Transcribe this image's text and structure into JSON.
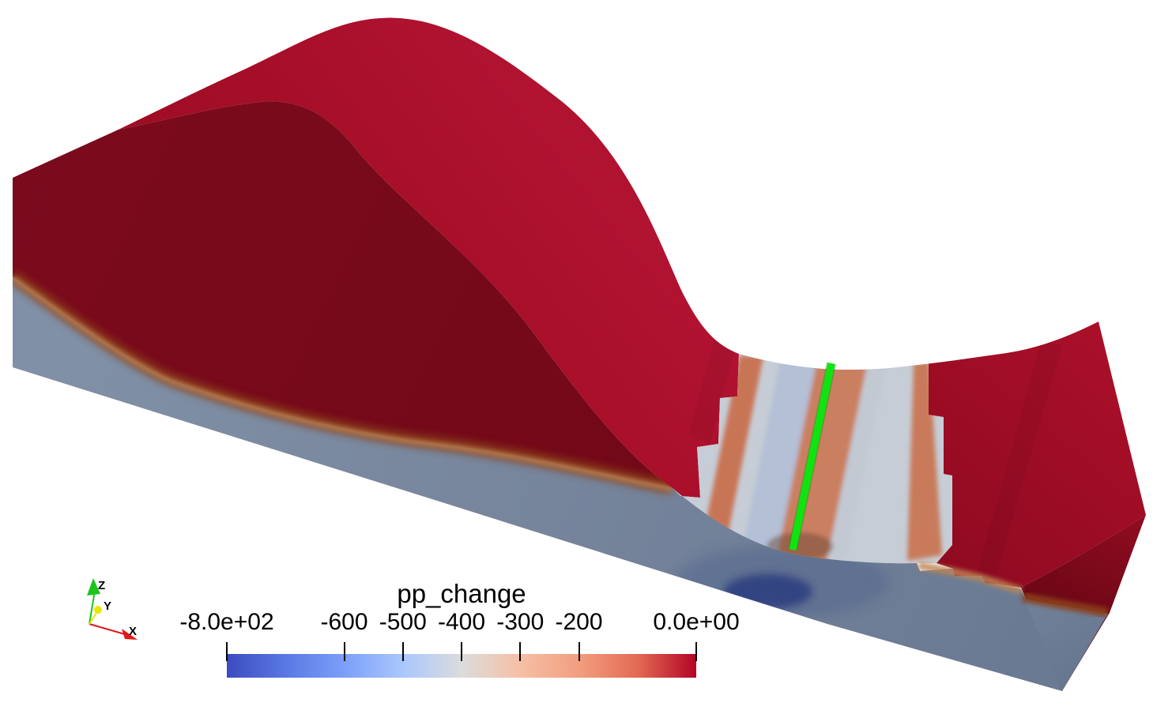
{
  "chart_data": {
    "type": "3d-surface",
    "title": "pp_change",
    "colorbar": {
      "title": "pp_change",
      "min": -800,
      "max": 0,
      "colormap": "cool-to-warm",
      "orientation": "horizontal",
      "ticks": [
        {
          "label": "-8.0e+02",
          "value": -800
        },
        {
          "label": "-600",
          "value": -600
        },
        {
          "label": "-500",
          "value": -500
        },
        {
          "label": "-400",
          "value": -400
        },
        {
          "label": "-300",
          "value": -300
        },
        {
          "label": "-200",
          "value": -200
        },
        {
          "label": "0.0e+00",
          "value": 0
        }
      ],
      "stops": [
        {
          "pos": 0.0,
          "color": "#3b4cc0"
        },
        {
          "pos": 0.125,
          "color": "#5a78e4"
        },
        {
          "pos": 0.25,
          "color": "#7c9ff9"
        },
        {
          "pos": 0.375,
          "color": "#aac7fd"
        },
        {
          "pos": 0.5,
          "color": "#dcdcdc"
        },
        {
          "pos": 0.625,
          "color": "#f6bfa6"
        },
        {
          "pos": 0.75,
          "color": "#f29e7f"
        },
        {
          "pos": 0.875,
          "color": "#e36a53"
        },
        {
          "pos": 1.0,
          "color": "#b40426"
        }
      ]
    },
    "scene": {
      "background": "#ffffff",
      "well_line": {
        "color": "#10e410",
        "shadow": "#0aa80a"
      },
      "surface_colors": {
        "top_red": "#a60e27",
        "top_red_bright": "#b11331",
        "top_red_shadow": "#8c0a1e",
        "front_red": "#7b0a1d",
        "front_red_deep": "#6d0815",
        "right_red": "#ac1029",
        "right_red_shadow": "#8e0a20",
        "endcap_red": "#8d0c1f",
        "endcap_red_deep": "#650613",
        "side_gray": "#8090a6",
        "side_gray_mid": "#76859c",
        "side_gray_dark": "#6a7a93",
        "pressure_blob": "#2e4180",
        "pressure_halo": "#4f628c",
        "fringe_brown": "#8a3f1f",
        "fringe_tan": "#bd8452",
        "valley_base": "#c7cdd6",
        "valley_salmon": "#c87456",
        "valley_blue": "#b3c0d6",
        "valley_halo_salmon": "#c97f61",
        "valley_streak": "#c2c9d3",
        "valley_salmon_right": "#c87a5a",
        "valley_smudge": "#6e4a38"
      },
      "orientation_axes": {
        "x": {
          "label": "X",
          "color": "#e01818"
        },
        "y": {
          "label": "Y",
          "color": "#e8e800"
        },
        "z": {
          "label": "Z",
          "color": "#1cc41c"
        }
      }
    }
  }
}
